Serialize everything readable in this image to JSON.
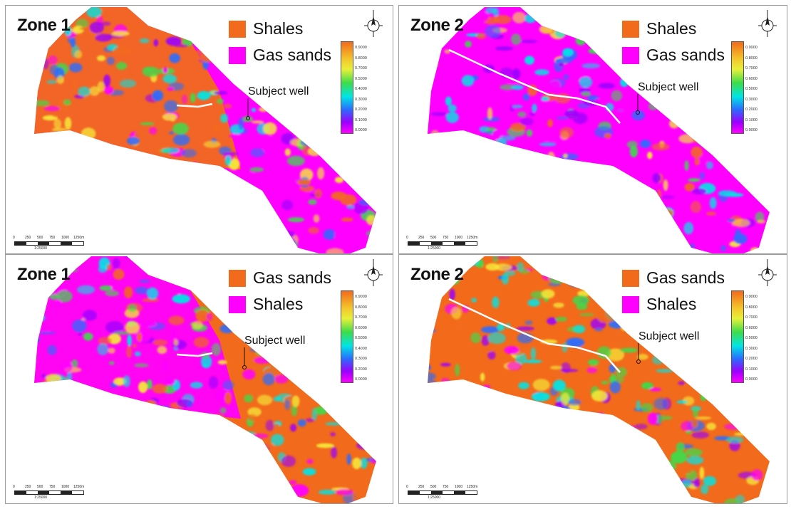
{
  "colors": {
    "orange": "#f26a1b",
    "magenta": "#ff00ff",
    "yellow": "#f5e93a",
    "green": "#3ddc4a",
    "cyan": "#00e5e5",
    "blue": "#2b6dff",
    "purple": "#9b00ff"
  },
  "panels": [
    {
      "title": "Zone 1",
      "legend": [
        {
          "label": "Shales",
          "color": "#f26a1b"
        },
        {
          "label": "Gas sands",
          "color": "#ff00ff"
        }
      ],
      "subject_well": "Subject well",
      "colorbar_ticks": [
        "0.9000",
        "0.8000",
        "0.7000",
        "0.5000",
        "0.4000",
        "0.3000",
        "0.2000",
        "0.1000",
        "0.0000"
      ],
      "scale_labels": [
        "0",
        "250",
        "500",
        "750",
        "1000",
        "1250m"
      ],
      "scale_ratio": "1:25000"
    },
    {
      "title": "Zone 2",
      "legend": [
        {
          "label": "Shales",
          "color": "#f26a1b"
        },
        {
          "label": "Gas sands",
          "color": "#ff00ff"
        }
      ],
      "subject_well": "Subject well",
      "colorbar_ticks": [
        "0.9000",
        "0.8000",
        "0.7000",
        "0.6000",
        "0.5000",
        "0.3000",
        "0.2000",
        "0.1000",
        "0.0000"
      ],
      "scale_labels": [
        "0",
        "250",
        "500",
        "750",
        "1000",
        "1250m"
      ],
      "scale_ratio": "1:25000"
    },
    {
      "title": "Zone 1",
      "legend": [
        {
          "label": "Gas sands",
          "color": "#f26a1b"
        },
        {
          "label": "Shales",
          "color": "#ff00ff"
        }
      ],
      "subject_well": "Subject well",
      "colorbar_ticks": [
        "0.9000",
        "0.8000",
        "0.7000",
        "0.6000",
        "0.5000",
        "0.4000",
        "0.3000",
        "0.2000",
        "0.0000"
      ],
      "scale_labels": [
        "0",
        "250",
        "500",
        "750",
        "1000",
        "1250m"
      ],
      "scale_ratio": "1:25000"
    },
    {
      "title": "Zone 2",
      "legend": [
        {
          "label": "Gas sands",
          "color": "#f26a1b"
        },
        {
          "label": "Shales",
          "color": "#ff00ff"
        }
      ],
      "subject_well": "Subject well",
      "colorbar_ticks": [
        "0.9000",
        "0.8000",
        "0.7000",
        "0.6000",
        "0.5000",
        "0.3000",
        "0.2000",
        "0.1000",
        "0.0000"
      ],
      "scale_labels": [
        "0",
        "250",
        "500",
        "750",
        "1000",
        "1250m"
      ],
      "scale_ratio": "1:25000"
    }
  ]
}
